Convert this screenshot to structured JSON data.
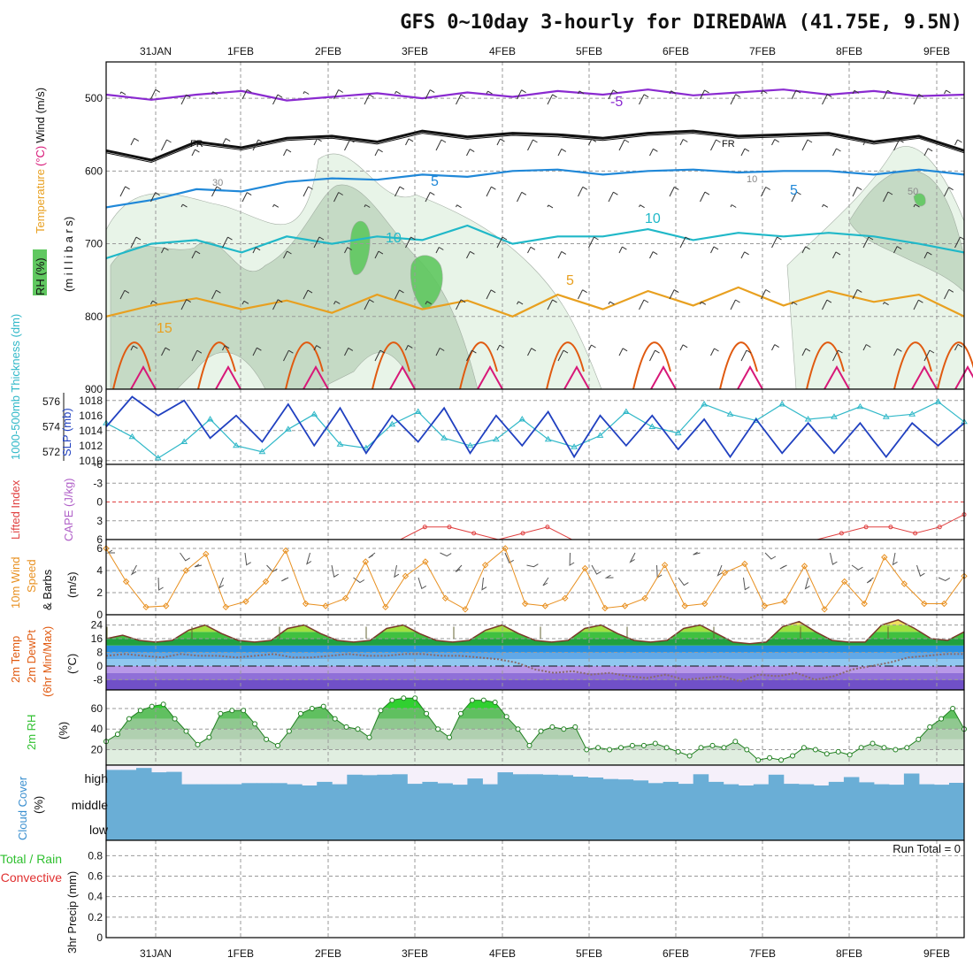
{
  "title": "GFS 0~10day 3-hourly for DIREDAWA (41.75E, 9.5N)",
  "dates": [
    "31JAN",
    "1FEB",
    "2FEB",
    "3FEB",
    "4FEB",
    "5FEB",
    "6FEB",
    "7FEB",
    "8FEB",
    "9FEB"
  ],
  "colors": {
    "temp_warm": "#e05a10",
    "temp_mid": "#e8a020",
    "temp_cool": "#20b8c8",
    "temp_cold": "#2088d8",
    "temp_hot": "#d81878",
    "temp_coldest": "#8a2ad0",
    "freezing": "#111111",
    "rh_light": "#e6f3e6",
    "rh_mid": "#c2d8c2",
    "rh_high": "#60c860",
    "slp": "#2040c0",
    "thickness": "#30b8c8",
    "lifted": "#e04040",
    "wind10": "#e89020",
    "rh2m": "#30c030",
    "cloud": "#6aaed6",
    "precip_total": "#40c040",
    "precip_conv": "#e03030"
  },
  "chart_data": [
    {
      "type": "line",
      "panel": "upper-air",
      "ylabels": {
        "rh": "RH (%)",
        "temperature": "Temperature",
        "temp_unit": "(°C)",
        "wind": "Wind (m/s)",
        "pressure": "(m i l l i b a r s)"
      },
      "yticks": [
        500,
        600,
        700,
        800,
        900
      ],
      "ylim": [
        450,
        900
      ],
      "series": [
        {
          "name": "Temperature (°C) -5",
          "values": [
            495,
            502,
            495,
            490,
            503,
            498,
            493,
            500,
            492,
            498,
            490,
            495,
            488,
            496,
            492,
            488,
            495,
            490,
            497,
            495
          ]
        },
        {
          "name": "Temperature (°C) 0 (FR)",
          "values": [
            572,
            585,
            560,
            568,
            555,
            552,
            560,
            545,
            553,
            548,
            550,
            555,
            548,
            545,
            552,
            550,
            548,
            560,
            552,
            572
          ]
        },
        {
          "name": "Temperature (°C) 5",
          "values": [
            650,
            640,
            625,
            628,
            615,
            610,
            612,
            605,
            608,
            600,
            598,
            605,
            600,
            598,
            602,
            600,
            600,
            605,
            598,
            605
          ]
        },
        {
          "name": "Temperature (°C) 10",
          "values": [
            720,
            700,
            695,
            712,
            690,
            700,
            690,
            695,
            675,
            700,
            690,
            690,
            680,
            695,
            685,
            690,
            685,
            690,
            700,
            712
          ]
        },
        {
          "name": "Temperature (°C) 15",
          "values": [
            800,
            785,
            775,
            790,
            778,
            795,
            770,
            790,
            778,
            800,
            770,
            790,
            765,
            785,
            760,
            785,
            765,
            780,
            770,
            800
          ]
        }
      ],
      "labels": {
        "freezing": "FR",
        "c5": "5",
        "c10": "10",
        "c15": "15",
        "cm5": "-5",
        "rh30": "30",
        "rh50": "50",
        "c10b": "10"
      }
    },
    {
      "type": "line",
      "panel": "pressure-thickness",
      "ylabels": {
        "thickness": "1000-500mb Thickness (dm)",
        "slp": "SLP (mb)"
      },
      "left_ticks": [
        "572",
        "574",
        "576"
      ],
      "right_ticks": [
        "1010",
        "1012",
        "1014",
        "1016",
        "1018"
      ],
      "series": [
        {
          "name": "SLP (mb)",
          "values": [
            1014.5,
            1018.5,
            1016,
            1018,
            1013,
            1016,
            1012.5,
            1017.5,
            1012,
            1017,
            1011,
            1016,
            1012.5,
            1017,
            1011,
            1016,
            1012,
            1016.5,
            1010.5,
            1016,
            1012,
            1016,
            1011.5,
            1015.5,
            1010.5,
            1015.5,
            1011,
            1015,
            1011,
            1015,
            1010.5,
            1015,
            1012,
            1015
          ]
        },
        {
          "name": "1000-500mb Thickness (dm)",
          "values": [
            574.3,
            573.2,
            571.5,
            572.8,
            574.6,
            572.5,
            572.0,
            573.8,
            575.0,
            572.6,
            572.3,
            574.2,
            575.2,
            573.1,
            572.5,
            573.0,
            574.6,
            573.0,
            572.4,
            573.3,
            575.2,
            574.0,
            573.5,
            575.8,
            575.0,
            574.5,
            575.8,
            574.6,
            574.8,
            575.6,
            574.8,
            575.0,
            576.0,
            574.4
          ]
        }
      ]
    },
    {
      "type": "line",
      "panel": "stability",
      "ylabels": {
        "li": "Lifted Index",
        "cape": "CAPE (J/kg)"
      },
      "yticks": [
        "-6",
        "-3",
        "0",
        "3",
        "6"
      ],
      "ylim": [
        -6,
        6
      ],
      "series": [
        {
          "name": "Lifted Index",
          "values": [
            6,
            6,
            6,
            6,
            6,
            6,
            6,
            6,
            6,
            6,
            6,
            6,
            6,
            4,
            4,
            5,
            6,
            5,
            4,
            6,
            6,
            6,
            6,
            6,
            6,
            6,
            6,
            6,
            6,
            6,
            5,
            4,
            4,
            5,
            4,
            2
          ]
        }
      ]
    },
    {
      "type": "line",
      "panel": "wind10m",
      "ylabels": {
        "a": "10m Wind",
        "b": "Speed",
        "c": "(m/s)",
        "d": "& Barbs"
      },
      "yticks": [
        "0",
        "2",
        "4",
        "6"
      ],
      "ylim": [
        0,
        6.8
      ],
      "series": [
        {
          "name": "10m Wind Speed",
          "values": [
            6,
            3,
            0.7,
            0.8,
            4,
            5.5,
            0.7,
            1.2,
            3,
            5.8,
            1.0,
            0.8,
            1.5,
            4.8,
            0.7,
            3.5,
            4.8,
            1.5,
            0.5,
            4.5,
            6.0,
            1.0,
            0.8,
            1.5,
            4.2,
            0.6,
            0.8,
            1.5,
            4.5,
            0.8,
            1.0,
            3.8,
            4.6,
            0.8,
            1.2,
            4.4,
            0.5,
            3.0,
            1.0,
            5.2,
            2.8,
            1.0,
            1.0,
            3.5
          ]
        }
      ]
    },
    {
      "type": "area",
      "panel": "temperature2m",
      "ylabels": {
        "a": "2m Temp",
        "b": "2m DewPt",
        "c": "(6hr Min/Max)",
        "unit": "(°C)"
      },
      "yticks": [
        "-8",
        "0",
        "8",
        "16",
        "24"
      ],
      "ylim": [
        -14,
        30
      ],
      "series": [
        {
          "name": "2m Temp",
          "values": [
            16,
            18,
            15,
            14,
            15,
            21,
            24,
            19,
            15,
            14,
            15,
            22,
            24,
            19,
            15,
            14,
            15,
            22,
            24,
            19,
            15,
            14,
            15,
            21,
            24,
            19,
            15,
            14,
            15,
            22,
            24,
            19,
            15,
            14,
            15,
            22,
            24,
            19,
            14,
            13,
            14,
            23,
            26,
            20,
            15,
            14,
            14,
            24,
            27,
            22,
            16,
            15,
            20
          ]
        },
        {
          "name": "2m DewPt",
          "values": [
            6,
            7,
            6,
            5,
            7,
            6,
            6,
            5,
            6,
            7,
            5,
            5,
            6,
            7,
            6,
            6,
            7,
            7,
            6,
            6,
            5,
            4,
            2,
            -2,
            -4,
            -3,
            -5,
            -4,
            -6,
            -7,
            -5,
            -8,
            -7,
            -6,
            -9,
            -5,
            -6,
            -4,
            -8,
            -6,
            -2,
            0,
            2,
            5,
            6,
            7,
            7
          ]
        }
      ]
    },
    {
      "type": "area",
      "panel": "rh2m",
      "ylabels": {
        "a": "2m RH",
        "unit": "(%)"
      },
      "yticks": [
        "20",
        "40",
        "60"
      ],
      "ylim": [
        5,
        78
      ],
      "series": [
        {
          "name": "2m RH",
          "values": [
            28,
            35,
            50,
            58,
            62,
            64,
            50,
            38,
            25,
            32,
            55,
            58,
            58,
            45,
            30,
            24,
            38,
            55,
            60,
            62,
            50,
            42,
            40,
            32,
            58,
            68,
            70,
            70,
            55,
            40,
            32,
            55,
            68,
            68,
            66,
            52,
            40,
            24,
            38,
            42,
            40,
            42,
            20,
            22,
            20,
            22,
            24,
            24,
            26,
            22,
            18,
            14,
            22,
            24,
            22,
            28,
            20,
            10,
            12,
            10,
            14,
            22,
            20,
            16,
            18,
            15,
            22,
            26,
            22,
            20,
            22,
            30,
            42,
            50,
            60,
            40
          ]
        }
      ]
    },
    {
      "type": "area",
      "panel": "cloud",
      "ylabels": {
        "a": "Cloud Cover",
        "unit": "(%)"
      },
      "levels": [
        "high",
        "middle",
        "low"
      ],
      "series": [
        {
          "name": "high cloud",
          "values": [
            80,
            80,
            88,
            70,
            72,
            20,
            20,
            20,
            20,
            25,
            25,
            25,
            20,
            15,
            30,
            20,
            60,
            58,
            60,
            62,
            22,
            30,
            24,
            18,
            44,
            20,
            70,
            62,
            62,
            60,
            58,
            52,
            48,
            42,
            40,
            36,
            25,
            30,
            22,
            62,
            30,
            20,
            15,
            20,
            60,
            22,
            20,
            15,
            30,
            50,
            28,
            20,
            18,
            65,
            20,
            18,
            26
          ]
        }
      ]
    },
    {
      "type": "bar",
      "panel": "precip",
      "ylabels": {
        "a": "Total / Rain",
        "b": "Convective",
        "c": "3hr Precip (mm)"
      },
      "yticks": [
        "0",
        "0.2",
        "0.4",
        "0.6",
        "0.8"
      ],
      "ylim": [
        0,
        0.95
      ],
      "run_total": "Run Total = 0",
      "series": [
        {
          "name": "3hr Precip (mm)",
          "values": [
            0
          ]
        }
      ]
    }
  ]
}
